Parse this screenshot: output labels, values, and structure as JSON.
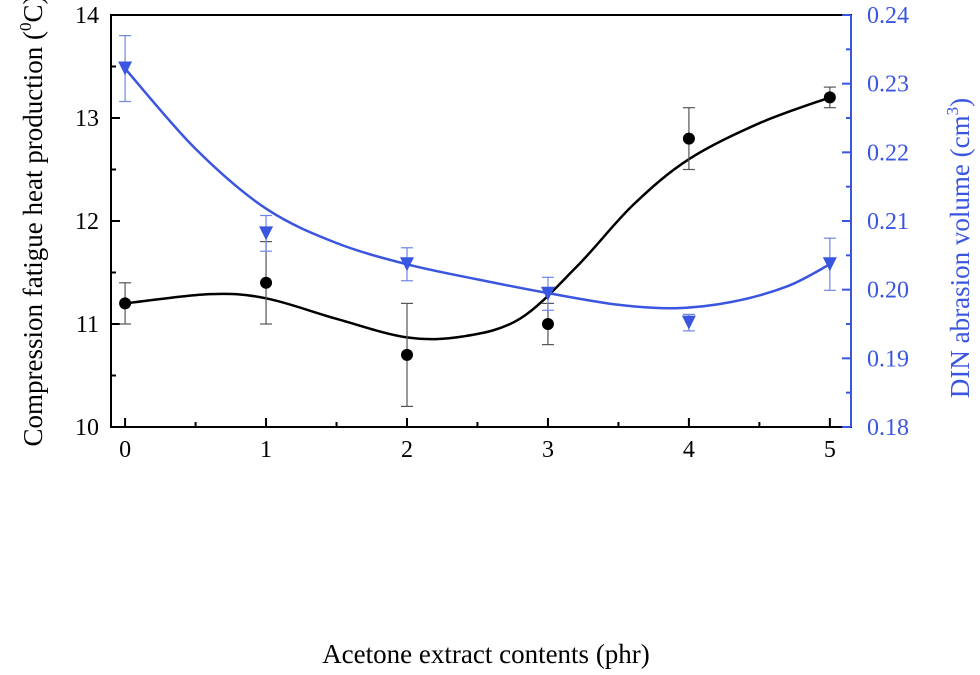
{
  "chart_data": {
    "type": "scatter",
    "xlabel": "Acetone extract contents (phr)",
    "x_ticks": [
      "0",
      "1",
      "2",
      "3",
      "4",
      "5"
    ],
    "xlim": [
      -0.1,
      5.15
    ],
    "y_left": {
      "label_main": "Compression fatigue heat production (",
      "label_sup": "0",
      "label_end": "C)",
      "ticks": [
        "10",
        "11",
        "12",
        "13",
        "14"
      ],
      "ylim": [
        10,
        14
      ],
      "color": "#000000"
    },
    "y_right": {
      "label_main": "DIN abrasion volume (cm",
      "label_sup": "3",
      "label_end": ")",
      "ticks": [
        "0.18",
        "0.19",
        "0.20",
        "0.21",
        "0.22",
        "0.23",
        "0.24"
      ],
      "ylim": [
        0.18,
        0.24
      ],
      "color": "#3a55e0"
    },
    "series": [
      {
        "axis": "left",
        "marker": "circle",
        "color": "#000000",
        "x": [
          0,
          1,
          2,
          3,
          4,
          5
        ],
        "y": [
          11.2,
          11.4,
          10.7,
          11.0,
          12.8,
          13.2
        ],
        "err": [
          0.2,
          0.4,
          0.5,
          0.2,
          0.3,
          0.1
        ],
        "fit_curve": [
          [
            0,
            11.2
          ],
          [
            0.6,
            11.29
          ],
          [
            1.0,
            11.25
          ],
          [
            1.5,
            11.05
          ],
          [
            2.0,
            10.87
          ],
          [
            2.4,
            10.88
          ],
          [
            2.8,
            11.05
          ],
          [
            3.2,
            11.55
          ],
          [
            3.6,
            12.15
          ],
          [
            4.0,
            12.6
          ],
          [
            4.5,
            12.95
          ],
          [
            5.0,
            13.2
          ]
        ]
      },
      {
        "axis": "right",
        "marker": "triangle-down",
        "color": "#3a55e0",
        "x": [
          0,
          1,
          2,
          3,
          4,
          5
        ],
        "y": [
          0.2322,
          0.2082,
          0.2037,
          0.1994,
          0.1952,
          0.2037
        ],
        "err": [
          0.0048,
          0.0026,
          0.0024,
          0.0024,
          0.0012,
          0.0038
        ],
        "fit_curve": [
          [
            0,
            0.2322
          ],
          [
            0.5,
            0.2205
          ],
          [
            1.0,
            0.2118
          ],
          [
            1.5,
            0.2068
          ],
          [
            2.0,
            0.2037
          ],
          [
            2.5,
            0.2015
          ],
          [
            3.0,
            0.1995
          ],
          [
            3.5,
            0.1978
          ],
          [
            3.9,
            0.1973
          ],
          [
            4.3,
            0.1982
          ],
          [
            4.7,
            0.2005
          ],
          [
            5.0,
            0.2037
          ]
        ]
      }
    ]
  }
}
